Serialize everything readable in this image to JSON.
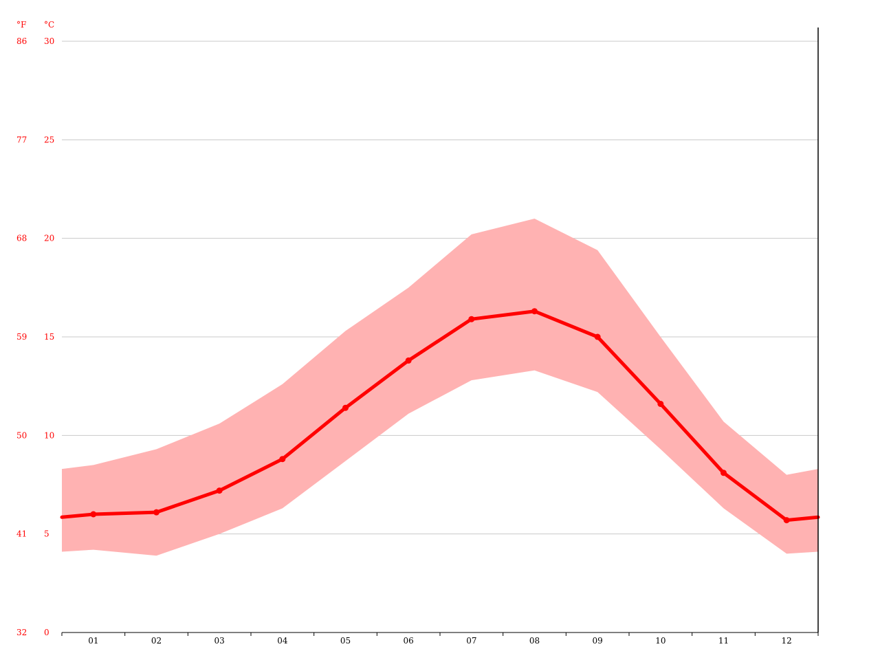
{
  "chart_data": {
    "type": "area",
    "title": "",
    "categories": [
      "01",
      "02",
      "03",
      "04",
      "05",
      "06",
      "07",
      "08",
      "09",
      "10",
      "11",
      "12"
    ],
    "y_unit_left": "°F",
    "y_unit_right": "°C",
    "y_ticks_c": [
      0,
      5,
      10,
      15,
      20,
      25,
      30
    ],
    "y_ticks_f": [
      32,
      41,
      50,
      59,
      68,
      77,
      86
    ],
    "ylim": [
      0,
      30
    ],
    "grid": true,
    "series": [
      {
        "values": [
          6.0,
          6.1,
          7.2,
          8.8,
          11.4,
          13.8,
          15.9,
          16.3,
          15.0,
          11.6,
          8.1,
          5.7
        ]
      }
    ],
    "band": {
      "lower": [
        4.2,
        3.9,
        5.0,
        6.3,
        8.7,
        11.1,
        12.8,
        13.3,
        12.2,
        9.3,
        6.3,
        4.0
      ],
      "upper": [
        8.5,
        9.3,
        10.6,
        12.6,
        15.3,
        17.5,
        20.2,
        21.0,
        19.4,
        15.0,
        10.7,
        8.0
      ]
    },
    "edge_values": {
      "mean": 5.85,
      "lower": 4.1,
      "upper": 8.3
    },
    "colors": {
      "line": "#ff0000",
      "band": "#ffb2b2",
      "grid": "#c8c8c8",
      "axis": "#000000"
    }
  }
}
